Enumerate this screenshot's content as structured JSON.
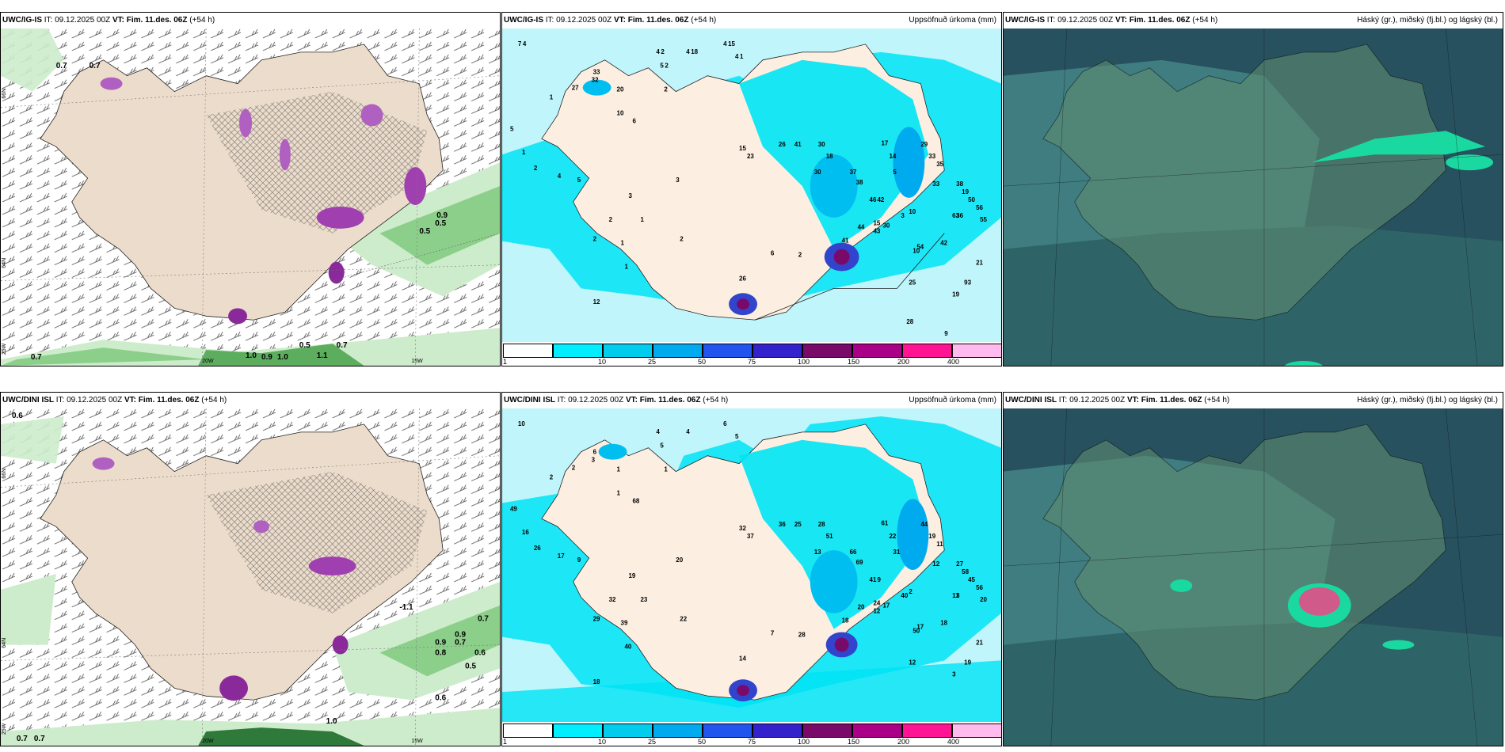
{
  "panels": {
    "p1": {
      "model": "UWC/IG-IS",
      "it_label": "IT:",
      "it": "09.12.2025 00Z",
      "vt_label": "VT:",
      "vt": "Fim. 11.des. 06Z",
      "lead": "(+54 h)",
      "right": ""
    },
    "p2": {
      "model": "UWC/IG-IS",
      "it_label": "IT:",
      "it": "09.12.2025 00Z",
      "vt_label": "VT:",
      "vt": "Fim. 11.des. 06Z",
      "lead": "(+54 h)",
      "right": "Uppsöfnuð úrkoma (mm)"
    },
    "p3": {
      "model": "UWC/IG-IS",
      "it_label": "IT:",
      "it": "09.12.2025 00Z",
      "vt_label": "VT:",
      "vt": "Fim. 11.des. 06Z",
      "lead": "(+54 h)",
      "right": "Háský (gr.), miðský (fj.bl.) og lágský (bl.)"
    },
    "p4": {
      "model": "UWC/DINI ISL",
      "it_label": "IT:",
      "it": "09.12.2025 00Z",
      "vt_label": "VT:",
      "vt": "Fim. 11.des. 06Z",
      "lead": "(+54 h)",
      "right": ""
    },
    "p5": {
      "model": "UWC/DINI ISL",
      "it_label": "IT:",
      "it": "09.12.2025 00Z",
      "vt_label": "VT:",
      "vt": "Fim. 11.des. 06Z",
      "lead": "(+54 h)",
      "right": "Uppsöfnuð úrkoma (mm)"
    },
    "p6": {
      "model": "UWC/DINI ISL",
      "it_label": "IT:",
      "it": "09.12.2025 00Z",
      "vt_label": "VT:",
      "vt": "Fim. 11.des. 06Z",
      "lead": "(+54 h)",
      "right": "Háský (gr.), miðský (fj.bl.) og lágský (bl.)"
    }
  },
  "axis_labels": {
    "lon20": "20W",
    "lon15": "15W",
    "lat66": "66N",
    "lat64": "64N",
    "lon25": "25W"
  },
  "wind_values_top": [
    "0.7",
    "0.7",
    "0.5",
    "0.5",
    "0.9",
    "0.7",
    "1.0",
    "0.9",
    "1.0",
    "0.5",
    "0.7",
    "1.1"
  ],
  "wind_values_bottom": [
    "0.6",
    "0.7",
    "0.7",
    "0.9",
    "0.8",
    "0.7",
    "0.6",
    "0.5",
    "0.6",
    "1.0",
    "0.9",
    "0.7",
    "-1.1"
  ],
  "precip_labels_top": [
    "7",
    "4",
    "4",
    "4",
    "4",
    "5",
    "33",
    "32",
    "27",
    "20",
    "2",
    "1",
    "10",
    "6",
    "5",
    "1",
    "2",
    "4",
    "5",
    "3",
    "3",
    "2",
    "1",
    "2",
    "1",
    "2",
    "1",
    "12",
    "26",
    "6",
    "2",
    "15",
    "26",
    "23",
    "41",
    "30",
    "18",
    "30",
    "37",
    "38",
    "46",
    "17",
    "14",
    "5",
    "29",
    "33",
    "35",
    "33",
    "38",
    "19",
    "63",
    "10",
    "50",
    "56",
    "55",
    "36",
    "10",
    "15",
    "42",
    "43",
    "25",
    "93",
    "41",
    "44",
    "30",
    "54",
    "42",
    "3",
    "21",
    "19",
    "28",
    "9",
    "4",
    "2",
    "18",
    "15",
    "1",
    "2"
  ],
  "precip_labels_bottom": [
    "10",
    "4",
    "4",
    "6",
    "5",
    "5",
    "6",
    "3",
    "2",
    "1",
    "1",
    "2",
    "1",
    "68",
    "49",
    "16",
    "26",
    "17",
    "9",
    "20",
    "19",
    "32",
    "23",
    "29",
    "39",
    "22",
    "40",
    "18",
    "14",
    "7",
    "28",
    "32",
    "36",
    "37",
    "25",
    "28",
    "51",
    "13",
    "66",
    "69",
    "41",
    "61",
    "22",
    "31",
    "44",
    "19",
    "11",
    "12",
    "27",
    "58",
    "11",
    "50",
    "45",
    "56",
    "20",
    "3",
    "2",
    "24",
    "9",
    "12",
    "12",
    "19",
    "18",
    "20",
    "17",
    "17",
    "18",
    "40",
    "21",
    "3"
  ],
  "colorbar": {
    "ticks": [
      "1",
      "10",
      "25",
      "50",
      "75",
      "100",
      "150",
      "200",
      "400"
    ],
    "colors": [
      "#ffffff",
      "#00eeff",
      "#00ccee",
      "#00aaee",
      "#2255ee",
      "#3322cc",
      "#7a0a6a",
      "#aa0088",
      "#ff1493",
      "#ffbbee"
    ]
  },
  "colors": {
    "land": "#ecdccb",
    "wind_green_light": "#cdeccb",
    "wind_green_mid": "#8ccf8a",
    "wind_green_dark": "#2f7a3a",
    "precip_sea": "#bff5fb",
    "precip_cyan": "#00e4f5",
    "cloud_dark": "#27515e",
    "cloud_mid": "#3f7d80",
    "cloud_land": "#5d8b6f",
    "cloud_green": "#1ad9a0"
  }
}
